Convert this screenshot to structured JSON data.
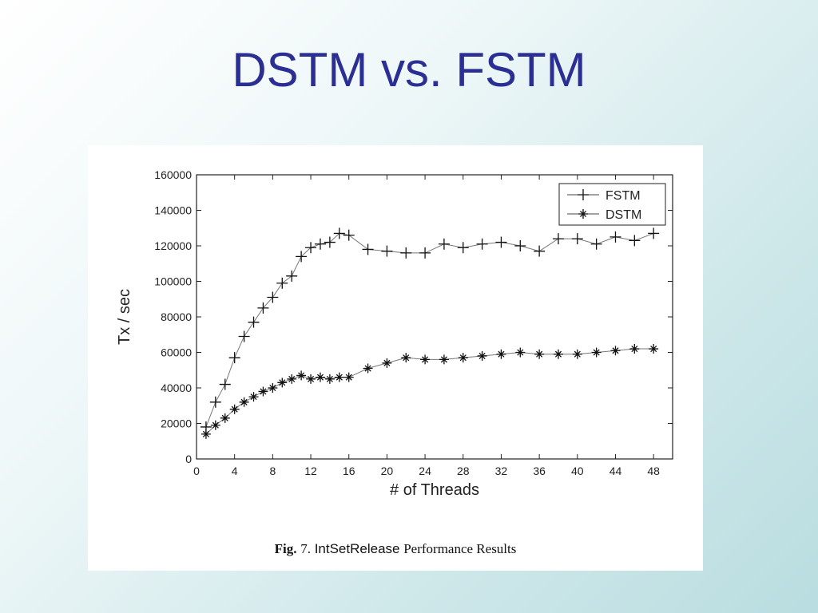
{
  "slide": {
    "title": "DSTM vs. FSTM"
  },
  "caption": {
    "label": "Fig.",
    "number": "7.",
    "name": "IntSetRelease",
    "rest": "Performance Results"
  },
  "chart_data": {
    "type": "line",
    "title": "",
    "xlabel": "# of Threads",
    "ylabel": "Tx / sec",
    "xlim": [
      0,
      50
    ],
    "ylim": [
      0,
      160000
    ],
    "xticks": [
      0,
      4,
      8,
      12,
      16,
      20,
      24,
      28,
      32,
      36,
      40,
      44,
      48
    ],
    "yticks": [
      0,
      20000,
      40000,
      60000,
      80000,
      100000,
      120000,
      140000,
      160000
    ],
    "grid": false,
    "legend": "top-right",
    "series": [
      {
        "name": "FSTM",
        "marker": "plus",
        "x": [
          1,
          2,
          3,
          4,
          5,
          6,
          7,
          8,
          9,
          10,
          11,
          12,
          13,
          14,
          15,
          16,
          18,
          20,
          22,
          24,
          26,
          28,
          30,
          32,
          34,
          36,
          38,
          40,
          42,
          44,
          46,
          48
        ],
        "values": [
          18000,
          32000,
          42000,
          57000,
          69000,
          77000,
          85000,
          91000,
          99000,
          103000,
          114000,
          119000,
          121000,
          122000,
          127000,
          126000,
          118000,
          117000,
          116000,
          116000,
          121000,
          119000,
          121000,
          122000,
          120000,
          117000,
          124000,
          124000,
          121000,
          125000,
          123000,
          127000
        ]
      },
      {
        "name": "DSTM",
        "marker": "star",
        "x": [
          1,
          2,
          3,
          4,
          5,
          6,
          7,
          8,
          9,
          10,
          11,
          12,
          13,
          14,
          15,
          16,
          18,
          20,
          22,
          24,
          26,
          28,
          30,
          32,
          34,
          36,
          38,
          40,
          42,
          44,
          46,
          48
        ],
        "values": [
          14000,
          19000,
          23000,
          28000,
          32000,
          35000,
          38000,
          40000,
          43000,
          45000,
          47000,
          45000,
          46000,
          45000,
          46000,
          46000,
          51000,
          54000,
          57000,
          56000,
          56000,
          57000,
          58000,
          59000,
          60000,
          59000,
          59000,
          59000,
          60000,
          61000,
          62000,
          62000
        ]
      }
    ]
  }
}
